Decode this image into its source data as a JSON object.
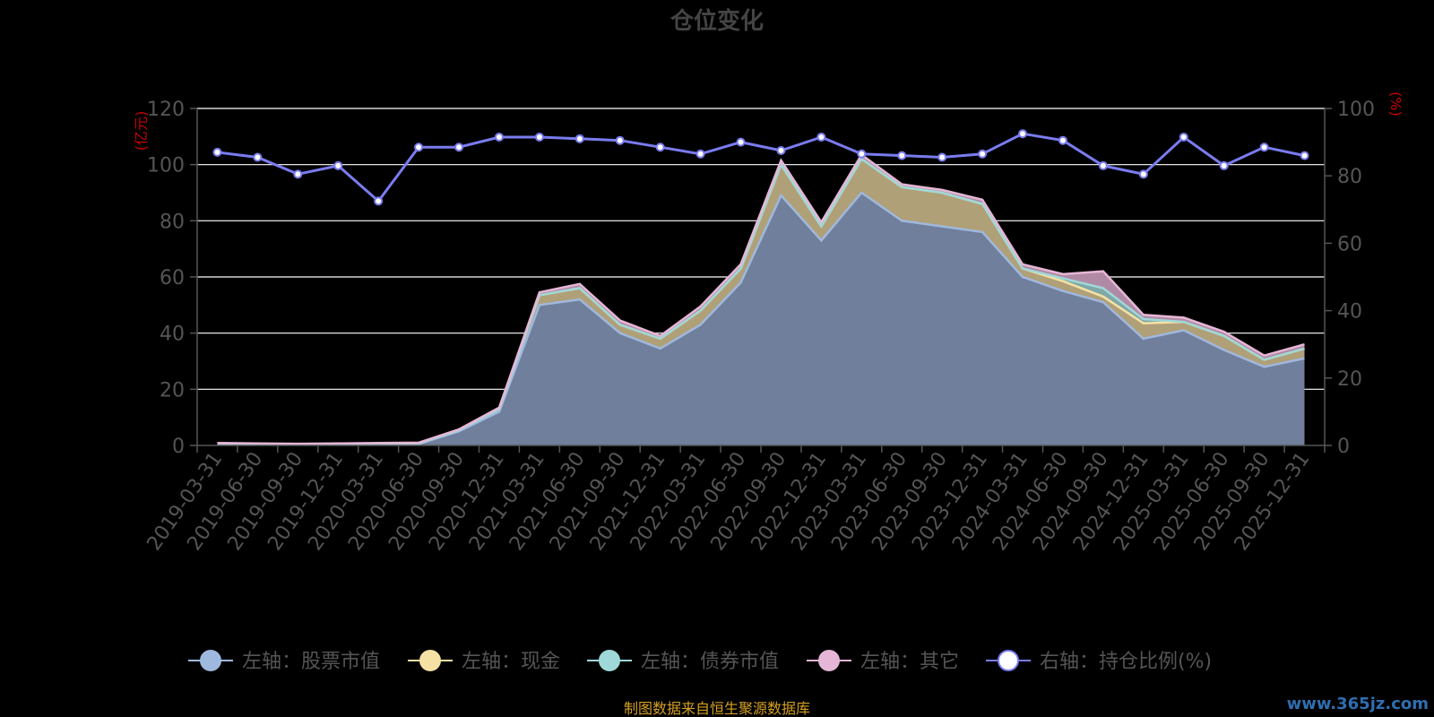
{
  "chart_data": {
    "type": "area",
    "title": "仓位变化",
    "left_axis_unit": "(亿元)",
    "right_axis_unit": "(%)",
    "left_ylim": [
      0,
      120
    ],
    "left_yticks": [
      0,
      20,
      40,
      60,
      80,
      100,
      120
    ],
    "right_ylim": [
      0,
      100
    ],
    "right_yticks": [
      0,
      20,
      40,
      60,
      80,
      100
    ],
    "grid": true,
    "legend_position": "bottom",
    "categories": [
      "2019-03-31",
      "2019-06-30",
      "2019-09-30",
      "2019-12-31",
      "2020-03-31",
      "2020-06-30",
      "2020-09-30",
      "2020-12-31",
      "2021-03-31",
      "2021-06-30",
      "2021-09-30",
      "2021-12-31",
      "2022-03-31",
      "2022-06-30",
      "2022-09-30",
      "2022-12-31",
      "2023-03-31",
      "2023-06-30",
      "2023-09-30",
      "2023-12-31",
      "2024-03-31",
      "2024-06-30",
      "2024-09-30",
      "2024-12-31",
      "2025-03-31",
      "2025-06-30",
      "2025-09-30",
      "2025-12-31"
    ],
    "stacked_series": [
      {
        "name": "左轴：股票市值",
        "color": "#9fb8de",
        "values": [
          0.5,
          0.4,
          0.3,
          0.3,
          0.4,
          0.5,
          5,
          12,
          50,
          52,
          40,
          34.5,
          43,
          58,
          89,
          73,
          90,
          80,
          78,
          76,
          60,
          55,
          51,
          38,
          41,
          34,
          28,
          31
        ]
      },
      {
        "name": "左轴：现金",
        "color": "#f5e1a4",
        "values": [
          0.2,
          0.1,
          0.1,
          0.2,
          0.3,
          0.3,
          0.5,
          1,
          3.5,
          4,
          3,
          3.5,
          5,
          5,
          11,
          5,
          12,
          12,
          12,
          10,
          3,
          3.5,
          2,
          5.5,
          3,
          5,
          2.5,
          3.5
        ]
      },
      {
        "name": "左轴：债券市值",
        "color": "#9fd8d8",
        "values": [
          0,
          0,
          0,
          0,
          0,
          0,
          0,
          0,
          0,
          0,
          0,
          0,
          0,
          0,
          0,
          0,
          0,
          0,
          0,
          0,
          0,
          1,
          3,
          1.5,
          0,
          0,
          0,
          0
        ]
      },
      {
        "name": "左轴：其它",
        "color": "#e6b6d6",
        "values": [
          0.2,
          0.2,
          0.2,
          0.2,
          0.2,
          0.2,
          0.2,
          0.5,
          1,
          1.5,
          1.5,
          1,
          1.5,
          1.5,
          1.5,
          1.5,
          1.5,
          1,
          1,
          1.5,
          1.5,
          1.5,
          6,
          1.5,
          1.5,
          1.5,
          1.5,
          1.5
        ]
      }
    ],
    "line_series": {
      "name": "右轴：持仓比例(%)",
      "color": "#7a7cf0",
      "values": [
        87,
        85.5,
        80.5,
        83,
        72.5,
        88.5,
        88.5,
        91.5,
        91.5,
        91,
        90.5,
        88.5,
        86.5,
        90,
        87.5,
        91.5,
        86.5,
        86,
        85.5,
        86.5,
        92.5,
        90.5,
        83,
        80.5,
        91.5,
        83,
        88.5,
        86
      ]
    },
    "source_note": "制图数据来自恒生聚源数据库",
    "colors": {
      "axis_text": "#555555",
      "grid": "#ffffff",
      "unit": "#cc0000",
      "title": "#444444",
      "source": "#d4a020",
      "area_fill": "#6f7f9c",
      "area_mid": "#b0a078"
    }
  },
  "watermark": "www.365jz.com"
}
